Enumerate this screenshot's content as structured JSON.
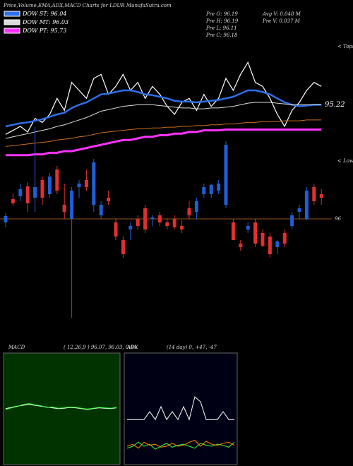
{
  "chart_data": {
    "type": "candlestick",
    "title": "Price,Volume,EMA,ADX,MACD Charts for LDUR MunafaSutra.com",
    "info": [
      "Pre  O: 96.19",
      "Pre  H: 96.19",
      "Pre  L: 96.11",
      "Pre  C: 96.18",
      "Avg  V: 0.048 M",
      "Pre  V: 0.037 M"
    ],
    "annotations": [
      "< Tops",
      "< Lows"
    ],
    "price_labels": [
      {
        "value": 95.22,
        "label": "95.22"
      },
      {
        "value": 96,
        "label": "96"
      }
    ],
    "ylim": [
      94.5,
      97.4
    ],
    "candles": {
      "up_color": "#1f5fd6",
      "down_color": "#e03030",
      "open": [
        95.95,
        96.28,
        96.32,
        96.46,
        96.3,
        96.55,
        96.35,
        96.7,
        96.2,
        96.0,
        96.45,
        96.55,
        96.2,
        96.05,
        96.3,
        95.95,
        95.7,
        95.85,
        96.0,
        96.15,
        96.0,
        96.05,
        95.95,
        96.0,
        95.9,
        96.15,
        96.1,
        96.35,
        96.35,
        96.4,
        96.2,
        95.95,
        95.65,
        95.85,
        95.95,
        95.8,
        95.75,
        95.6,
        95.8,
        95.9,
        96.1,
        96.0,
        96.45,
        96.35
      ],
      "high": [
        96.08,
        96.36,
        96.5,
        96.52,
        97.3,
        96.6,
        96.65,
        96.75,
        96.5,
        96.45,
        96.55,
        96.7,
        96.85,
        96.25,
        96.4,
        96.0,
        95.75,
        95.95,
        96.05,
        96.2,
        96.05,
        96.1,
        96.0,
        96.05,
        95.98,
        96.25,
        96.3,
        96.5,
        96.5,
        96.55,
        97.1,
        96.0,
        95.7,
        95.95,
        96.0,
        95.85,
        95.8,
        95.7,
        95.85,
        96.1,
        96.2,
        96.45,
        96.5,
        96.42
      ],
      "low": [
        95.88,
        96.18,
        96.25,
        96.1,
        96.1,
        96.2,
        96.3,
        96.35,
        96.0,
        94.6,
        96.3,
        96.4,
        96.1,
        96.0,
        96.2,
        95.7,
        95.45,
        95.7,
        95.85,
        95.8,
        95.9,
        95.9,
        95.85,
        95.85,
        95.8,
        96.0,
        96.0,
        96.3,
        96.3,
        96.35,
        96.15,
        95.7,
        95.55,
        95.8,
        95.6,
        95.6,
        95.45,
        95.5,
        95.6,
        95.85,
        96.0,
        95.98,
        96.2,
        96.2
      ],
      "close": [
        96.04,
        96.22,
        96.42,
        96.22,
        96.45,
        96.3,
        96.6,
        96.4,
        96.1,
        96.4,
        96.5,
        96.45,
        96.8,
        96.2,
        96.25,
        95.75,
        95.5,
        95.9,
        95.9,
        95.85,
        96.02,
        95.95,
        95.9,
        95.88,
        95.85,
        96.05,
        96.25,
        96.45,
        96.48,
        96.5,
        97.05,
        95.7,
        95.6,
        95.9,
        95.65,
        95.62,
        95.5,
        95.68,
        95.65,
        96.05,
        96.15,
        96.4,
        96.25,
        96.3
      ]
    },
    "line_ylim": [
      94.5,
      96.0
    ],
    "series": [
      {
        "name": "DOW ST: 96.04",
        "color": "#2f6fe8",
        "values": [
          94.95,
          94.97,
          94.99,
          95.0,
          95.02,
          95.04,
          95.07,
          95.1,
          95.12,
          95.18,
          95.22,
          95.25,
          95.3,
          95.35,
          95.36,
          95.38,
          95.4,
          95.4,
          95.38,
          95.35,
          95.34,
          95.32,
          95.3,
          95.27,
          95.26,
          95.26,
          95.25,
          95.26,
          95.27,
          95.28,
          95.3,
          95.32,
          95.36,
          95.4,
          95.4,
          95.38,
          95.35,
          95.3,
          95.25,
          95.22,
          95.2,
          95.21,
          95.22,
          95.22
        ]
      },
      {
        "name": "DOW MT: 96.03",
        "color": "#dddddd",
        "values": [
          94.8,
          94.82,
          94.84,
          94.86,
          94.88,
          94.9,
          94.92,
          94.95,
          94.97,
          95.0,
          95.03,
          95.06,
          95.1,
          95.14,
          95.16,
          95.18,
          95.2,
          95.21,
          95.22,
          95.22,
          95.22,
          95.21,
          95.2,
          95.19,
          95.18,
          95.18,
          95.17,
          95.17,
          95.18,
          95.18,
          95.19,
          95.2,
          95.22,
          95.24,
          95.25,
          95.25,
          95.25,
          95.24,
          95.23,
          95.22,
          95.22,
          95.22,
          95.22,
          95.22
        ]
      },
      {
        "name": "DOW PT: 95.73",
        "color": "#ff33ff",
        "values": [
          94.59,
          94.59,
          94.59,
          94.59,
          94.6,
          94.6,
          94.62,
          94.62,
          94.64,
          94.64,
          94.66,
          94.68,
          94.7,
          94.72,
          94.74,
          94.76,
          94.78,
          94.78,
          94.8,
          94.82,
          94.82,
          94.84,
          94.84,
          94.86,
          94.86,
          94.88,
          94.88,
          94.9,
          94.9,
          94.9,
          94.91,
          94.91,
          94.91,
          94.91,
          94.91,
          94.91,
          94.91,
          94.91,
          94.91,
          94.91,
          94.91,
          94.91,
          94.91,
          94.91
        ]
      }
    ],
    "overlays": [
      {
        "color": "#ffffff",
        "values": [
          94.85,
          94.9,
          94.95,
          94.88,
          95.05,
          95.0,
          95.1,
          95.3,
          95.15,
          95.5,
          95.4,
          95.3,
          95.55,
          95.6,
          95.35,
          95.45,
          95.6,
          95.4,
          95.5,
          95.3,
          95.45,
          95.35,
          95.2,
          95.1,
          95.25,
          95.3,
          95.15,
          95.35,
          95.2,
          95.3,
          95.55,
          95.4,
          95.6,
          95.75,
          95.5,
          95.45,
          95.3,
          95.1,
          94.95,
          95.15,
          95.25,
          95.4,
          95.5,
          95.45
        ]
      },
      {
        "color": "#c8701e",
        "values": [
          94.7,
          94.71,
          94.72,
          94.73,
          94.74,
          94.75,
          94.76,
          94.78,
          94.79,
          94.8,
          94.82,
          94.83,
          94.85,
          94.87,
          94.88,
          94.89,
          94.9,
          94.91,
          94.92,
          94.92,
          94.93,
          94.93,
          94.94,
          94.94,
          94.95,
          94.95,
          94.96,
          94.96,
          94.97,
          94.97,
          94.98,
          94.98,
          94.99,
          95.0,
          95.0,
          95.01,
          95.01,
          95.01,
          95.02,
          95.02,
          95.02,
          95.03,
          95.03,
          95.03
        ]
      }
    ],
    "macd": {
      "label": "MACD",
      "params": "( 12,26,9 ) 96.07, 96.03, 0.04",
      "ylim": [
        -1,
        1
      ],
      "series": [
        {
          "color": "#ffffff",
          "values": [
            0.02,
            0.05,
            0.08,
            0.1,
            0.12,
            0.1,
            0.08,
            0.06,
            0.04,
            0.02,
            0.03,
            0.05,
            0.04,
            0.02,
            0.0,
            0.02,
            0.04,
            0.03,
            0.02,
            0.04
          ]
        },
        {
          "color": "#33ff33",
          "values": [
            0.0,
            0.04,
            0.07,
            0.12,
            0.14,
            0.11,
            0.09,
            0.05,
            0.06,
            0.03,
            0.04,
            0.06,
            0.05,
            0.03,
            0.01,
            0.03,
            0.05,
            0.04,
            0.03,
            0.05
          ]
        }
      ]
    },
    "adx": {
      "label": "ADX",
      "params": "(14 day) 0, +47, -47",
      "ylim": [
        0,
        100
      ],
      "series": [
        {
          "color": "#ffffff",
          "values": [
            47,
            47,
            47,
            47,
            55,
            47,
            60,
            47,
            55,
            47,
            60,
            47,
            70,
            65,
            47,
            47,
            47,
            55,
            47,
            47
          ]
        },
        {
          "color": "#33ff33",
          "values": [
            18,
            20,
            24,
            20,
            22,
            17,
            20,
            23,
            19,
            21,
            22,
            20,
            18,
            23,
            21,
            20,
            22,
            21,
            19,
            24
          ]
        },
        {
          "color": "#ff8800",
          "values": [
            20,
            22,
            18,
            24,
            21,
            22,
            19,
            20,
            23,
            20,
            21,
            24,
            26,
            20,
            25,
            22,
            21,
            23,
            24,
            21
          ]
        }
      ]
    }
  }
}
